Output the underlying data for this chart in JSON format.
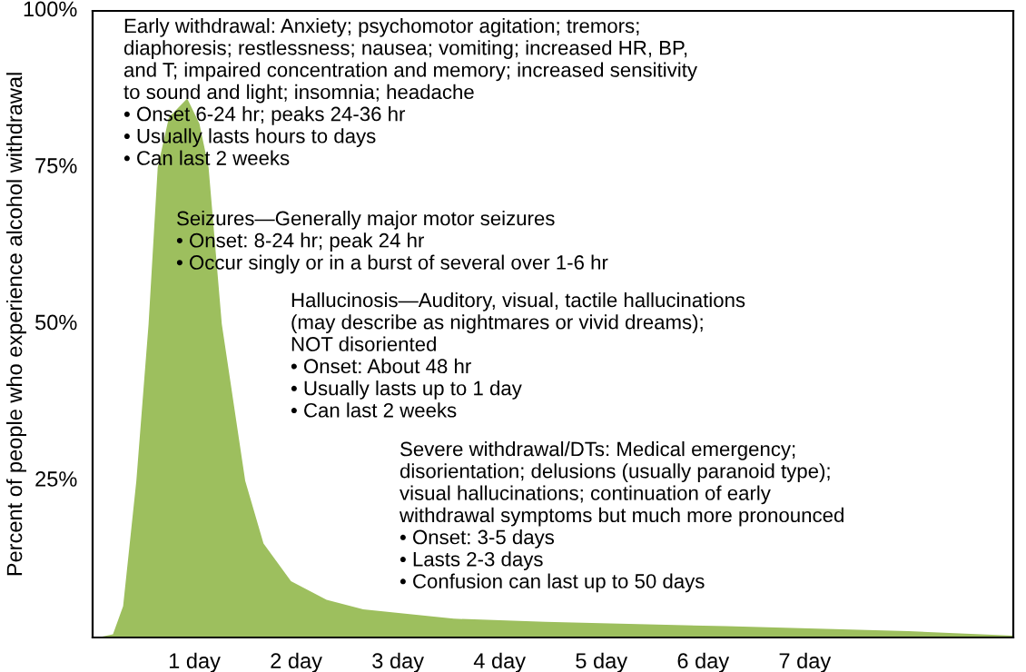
{
  "chart_data": {
    "type": "area",
    "ylabel": "Percent of people who experience alcohol withdrawal",
    "x": [
      0.05,
      0.2,
      0.3,
      0.43,
      0.55,
      0.64,
      0.75,
      0.93,
      1.05,
      1.14,
      1.27,
      1.5,
      1.68,
      1.95,
      2.3,
      2.66,
      3.55,
      4.45,
      6.23,
      8.02,
      9.05
    ],
    "values": [
      0,
      0.5,
      5,
      25,
      50,
      75,
      83,
      86,
      82,
      75,
      50,
      25,
      15,
      9,
      6,
      4.5,
      3,
      2.5,
      1.8,
      1,
      0.3
    ],
    "color": "#9dbf5e",
    "xlim": [
      0,
      9.05
    ],
    "xticks": [
      {
        "value": 1,
        "label": "1 day"
      },
      {
        "value": 2,
        "label": "2 day"
      },
      {
        "value": 3,
        "label": "3 day"
      },
      {
        "value": 4,
        "label": "4 day"
      },
      {
        "value": 5,
        "label": "5 day"
      },
      {
        "value": 6,
        "label": "6 day"
      },
      {
        "value": 7,
        "label": "7 day"
      }
    ],
    "ylim": [
      0,
      100
    ],
    "yticks": [
      {
        "value": 25,
        "label": "25%"
      },
      {
        "value": 50,
        "label": "50%"
      },
      {
        "value": 75,
        "label": "75%"
      },
      {
        "value": 100,
        "label": "100%"
      }
    ],
    "grid": false,
    "legend": false,
    "annotations": [
      "Early withdrawal: Anxiety; psychomotor agitation; tremors;\ndiaphoresis; restlessness; nausea; vomiting; increased HR, BP,\nand T; impaired concentration and memory; increased sensitivity\nto sound and light; insomnia; headache\n• Onset 6-24 hr; peaks 24-36 hr\n• Usually lasts hours to days\n• Can last 2 weeks",
      "Seizures—Generally major motor seizures\n• Onset: 8-24 hr; peak 24 hr\n• Occur singly or in a burst of several over 1-6 hr",
      "Hallucinosis—Auditory, visual, tactile hallucinations\n(may describe as nightmares or vivid dreams);\nNOT disoriented\n• Onset: About 48 hr\n• Usually lasts up to 1 day\n• Can last 2 weeks",
      "Severe withdrawal/DTs: Medical emergency;\ndisorientation; delusions (usually paranoid type);\nvisual hallucinations; continuation of early\nwithdrawal symptoms but much more pronounced\n• Onset: 3-5 days\n• Lasts 2-3 days\n• Confusion can last up to 50 days"
    ]
  }
}
